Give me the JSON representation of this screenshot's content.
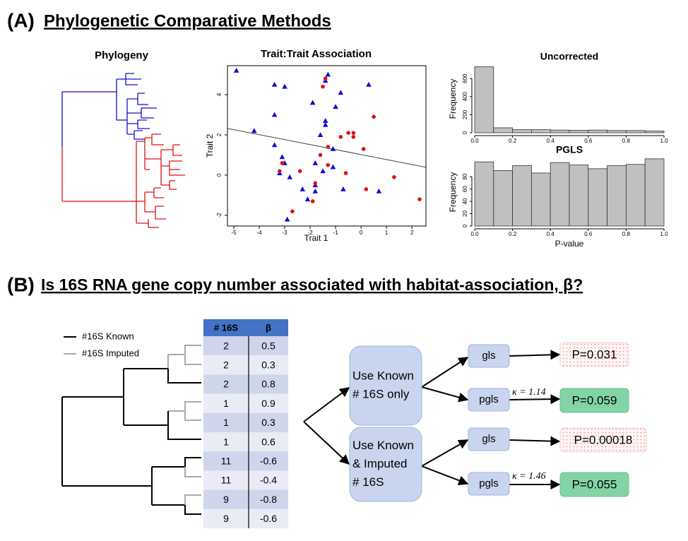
{
  "panel_a": {
    "label": "(A)",
    "title": "Phylogenetic Comparative Methods",
    "phylogeny_title": "Phylogeny"
  },
  "chart_data": [
    {
      "type": "scatter",
      "title": "Trait:Trait Association",
      "x_label": "Trait 1",
      "y_label": "Trait 2",
      "xlim": [
        -5.25,
        2.55
      ],
      "ylim": [
        -2.53,
        5.44
      ],
      "xticks": [
        -5,
        -4,
        -3,
        -2,
        -1,
        0,
        1,
        2
      ],
      "yticks": [
        -2,
        0,
        2,
        4
      ],
      "series": [
        {
          "color": "#1010d0",
          "marker": "triangle",
          "x": [
            -4.9,
            -3.4,
            -3.0,
            -1.3,
            -1.4,
            -1.9,
            -0.8,
            -1.0,
            0.3,
            -3.4,
            -4.2,
            -1.4,
            -1.4,
            -1.6,
            -3.4,
            -1.1,
            -3.1,
            -3.0,
            -3.2,
            -2.8,
            -1.8,
            -1.1,
            -1.5,
            -2.3,
            -1.8,
            -1.8,
            -2.1,
            -0.7,
            0.7,
            -2.9
          ],
          "values": [
            5.2,
            4.5,
            4.4,
            5.0,
            4.7,
            3.6,
            4.1,
            3.4,
            4.5,
            3.0,
            2.2,
            2.5,
            2.7,
            2.0,
            1.5,
            1.3,
            0.9,
            0.6,
            0.1,
            -0.1,
            0.6,
            0.4,
            0.2,
            -0.7,
            -0.5,
            -0.8,
            -1.2,
            -0.7,
            -0.8,
            -2.2
          ]
        },
        {
          "color": "#e01010",
          "marker": "circle",
          "x": [
            -1.4,
            -1.5,
            0.5,
            -0.5,
            -0.3,
            -0.8,
            -0.3,
            -1.3,
            0.1,
            -1.6,
            -3.1,
            -3.2,
            -2.4,
            -1.3,
            -0.6,
            1.3,
            -1.8,
            -1.9,
            -2.7,
            0.2,
            2.3
          ],
          "values": [
            4.8,
            4.4,
            2.9,
            2.1,
            2.1,
            1.9,
            1.9,
            1.4,
            1.3,
            1.0,
            0.6,
            0.2,
            0.2,
            0.5,
            0.1,
            -0.1,
            -0.4,
            -1.3,
            -1.8,
            -0.7,
            -1.2
          ]
        }
      ],
      "regression": {
        "x": [
          -5.25,
          2.55
        ],
        "y": [
          2.32,
          0.39
        ]
      }
    },
    {
      "type": "histogram",
      "title": "Uncorrected",
      "y_label": "Frequency",
      "color": "#c0c0c0",
      "bins": [
        0,
        0.1,
        0.2,
        0.3,
        0.4,
        0.5,
        0.6,
        0.7,
        0.8,
        0.9,
        1.0
      ],
      "values": [
        730,
        55,
        35,
        35,
        30,
        28,
        30,
        25,
        25,
        20
      ],
      "xlim": [
        0,
        1
      ],
      "ylim": [
        0,
        750
      ],
      "xticks": [
        {
          "value": 0,
          "label": "0.0"
        },
        {
          "value": 0.2,
          "label": "0.2"
        },
        {
          "value": 0.4,
          "label": "0.4"
        },
        {
          "value": 0.6,
          "label": "0.6"
        },
        {
          "value": 0.8,
          "label": "0.8"
        },
        {
          "value": 1,
          "label": "1.0"
        }
      ],
      "yticks": [
        0,
        200,
        400,
        600
      ]
    },
    {
      "type": "histogram",
      "title": "PGLS",
      "y_label": "Frequency",
      "x_label": "P-value",
      "color": "#c0c0c0",
      "bins": [
        0,
        0.1,
        0.2,
        0.3,
        0.4,
        0.5,
        0.6,
        0.7,
        0.8,
        0.9,
        1.0
      ],
      "values": [
        104,
        90,
        98,
        86,
        103,
        99,
        93,
        98,
        100,
        109
      ],
      "xlim": [
        0,
        1
      ],
      "ylim": [
        0,
        110
      ],
      "xticks": [
        {
          "value": 0,
          "label": "0.0"
        },
        {
          "value": 0.2,
          "label": "0.2"
        },
        {
          "value": 0.4,
          "label": "0.4"
        },
        {
          "value": 0.6,
          "label": "0.6"
        },
        {
          "value": 0.8,
          "label": "0.8"
        },
        {
          "value": 1,
          "label": "1.0"
        }
      ],
      "yticks": [
        0,
        20,
        40,
        60,
        80
      ]
    }
  ],
  "panel_b": {
    "label": "(B)",
    "title": "Is 16S RNA gene copy number associated with habitat-association, β?",
    "legend": [
      "#16S Known",
      "#16S Imputed"
    ],
    "table": {
      "header": [
        "# 16S",
        "β"
      ],
      "rows": [
        {
          "copies": 2,
          "beta": 0.5,
          "imputed": true
        },
        {
          "copies": 2,
          "beta": 0.3,
          "imputed": true
        },
        {
          "copies": 2,
          "beta": 0.8,
          "imputed": false
        },
        {
          "copies": 1,
          "beta": 0.9,
          "imputed": true
        },
        {
          "copies": 1,
          "beta": 0.3,
          "imputed": true
        },
        {
          "copies": 1,
          "beta": 0.6,
          "imputed": false
        },
        {
          "copies": 11,
          "beta": -0.6,
          "imputed": false
        },
        {
          "copies": 11,
          "beta": -0.4,
          "imputed": true
        },
        {
          "copies": 9,
          "beta": -0.8,
          "imputed": true
        },
        {
          "copies": 9,
          "beta": -0.6,
          "imputed": false
        }
      ]
    },
    "datasets": [
      {
        "label": [
          "Use Known",
          "# 16S only"
        ],
        "tests": [
          {
            "method": "gls",
            "result": "P=0.031",
            "significant": true
          },
          {
            "method": "pgls",
            "kappa": "κ = 1.14",
            "result": "P=0.059",
            "significant": false
          }
        ]
      },
      {
        "label": [
          "Use Known",
          "& Imputed",
          "# 16S"
        ],
        "tests": [
          {
            "method": "gls",
            "result": "P=0.00018",
            "significant": true
          },
          {
            "method": "pgls",
            "kappa": "κ = 1.46",
            "result": "P=0.055",
            "significant": false
          }
        ]
      }
    ]
  }
}
